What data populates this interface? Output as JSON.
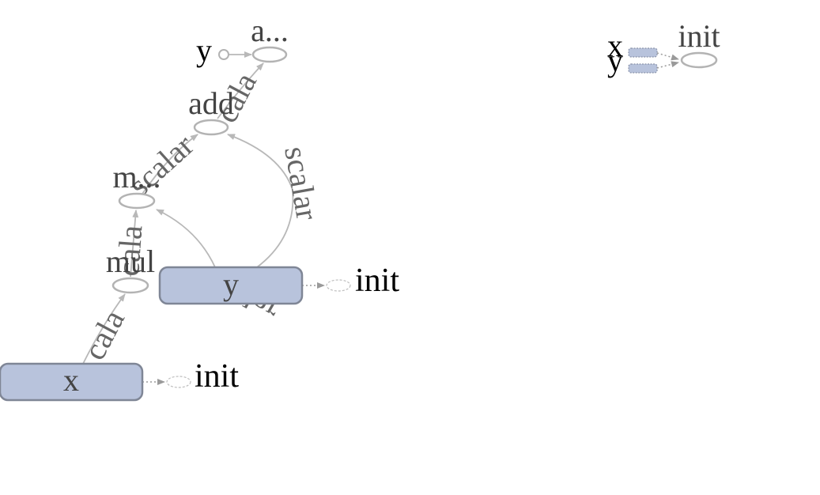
{
  "main_graph": {
    "variables": [
      {
        "label": "x",
        "init_label": "init"
      },
      {
        "label": "y",
        "init_label": "init"
      }
    ],
    "ops": [
      "mul",
      "m...",
      "add",
      "a..."
    ],
    "input_label": "y",
    "edge_labels": [
      "cala",
      "cala",
      "scalar",
      "scalar",
      "scalar",
      "cala"
    ]
  },
  "init_graph": {
    "inputs": [
      "x",
      "y"
    ],
    "op_label": "init"
  },
  "colors": {
    "variable_fill": "#b8c3dc",
    "variable_border": "#7f8696",
    "op_border": "#b3b3b3",
    "edge": "#b8b8b8"
  }
}
